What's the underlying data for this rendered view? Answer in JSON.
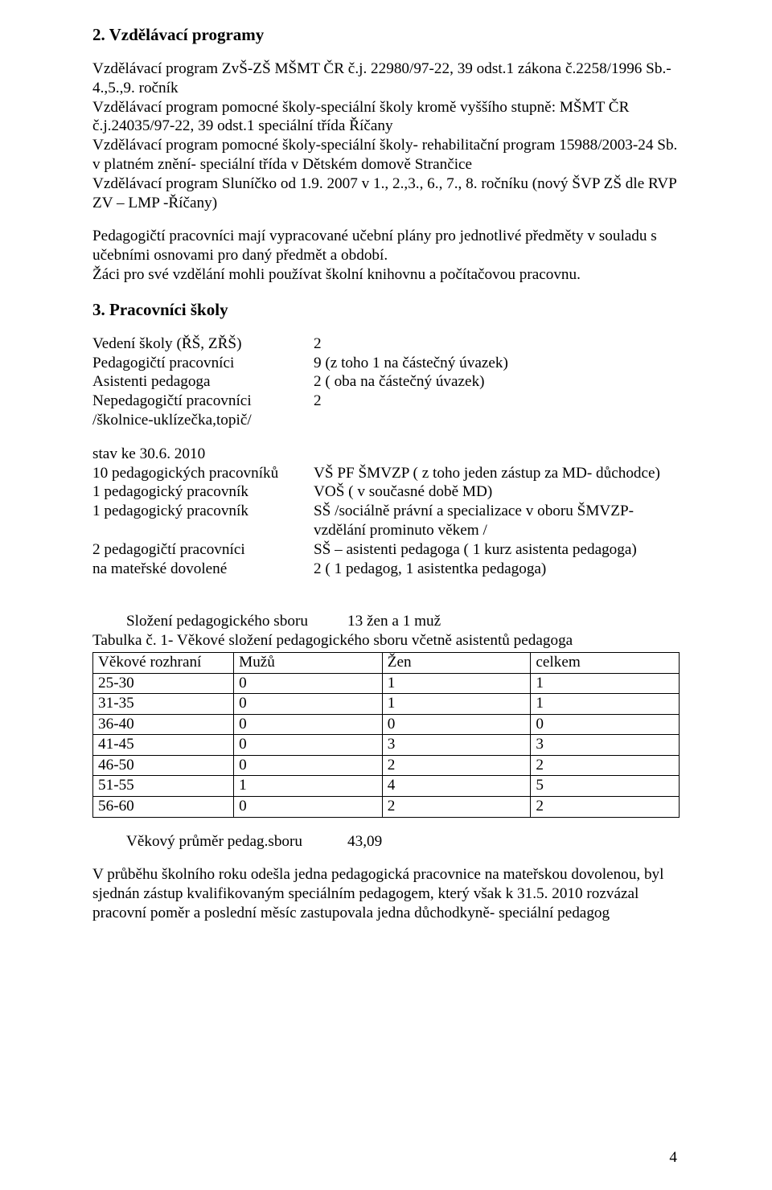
{
  "sections": {
    "vzdelavaci": {
      "heading": "2. Vzdělávací programy",
      "text": "Vzdělávací program ZvŠ-ZŠ MŠMT ČR č.j. 22980/97-22, 39 odst.1 zákona č.2258/1996 Sb.- 4.,5.,9. ročník\nVzdělávací program pomocné školy-speciální školy kromě vyššího stupně: MŠMT ČR č.j.24035/97-22, 39 odst.1 speciální třída Říčany\nVzdělávací program pomocné školy-speciální školy- rehabilitační program 15988/2003-24 Sb. v platném znění- speciální třída v Dětském domově Strančice\nVzdělávací program Sluníčko od 1.9. 2007 v 1., 2.,3., 6., 7., 8. ročníku (nový ŠVP ZŠ  dle RVP ZV – LMP -Říčany)",
      "text2": "Pedagogičtí pracovníci mají vypracované učební plány pro jednotlivé předměty v souladu s učebními osnovami pro daný předmět a období.\nŽáci pro své vzdělání mohli používat školní knihovnu a počítačovou pracovnu."
    },
    "pracovnici": {
      "heading": "3. Pracovníci školy",
      "rows1": [
        {
          "l": "Vedení školy (ŘŠ, ZŘŠ)",
          "r": "2"
        },
        {
          "l": "Pedagogičtí pracovníci",
          "r": "9 (z toho 1 na částečný úvazek)"
        },
        {
          "l": "Asistenti pedagoga",
          "r": "2 ( oba na částečný úvazek)"
        },
        {
          "l": "Nepedagogičtí pracovníci",
          "r": "2"
        },
        {
          "l": "/školnice-uklízečka,topič/",
          "r": ""
        }
      ],
      "stav_heading": "stav ke 30.6. 2010",
      "rows2": [
        {
          "l": "10 pedagogických pracovníků",
          "r": "VŠ PF ŠMVZP ( z toho jeden zástup za MD- důchodce)"
        },
        {
          "l": "1 pedagogický pracovník",
          "r": "VOŠ ( v současné době MD)"
        },
        {
          "l": "1 pedagogický pracovník",
          "r": "SŠ /sociálně právní a specializace v oboru ŠMVZP-"
        },
        {
          "l": "",
          "r": "vzdělání prominuto věkem /"
        },
        {
          "l": "2 pedagogičtí pracovníci",
          "r": "SŠ – asistenti pedagoga ( 1 kurz asistenta pedagoga)"
        },
        {
          "l": "na mateřské dovolené",
          "r": "2 ( 1 pedagog, 1 asistentka pedagoga)"
        }
      ],
      "slozeni_line": {
        "l": "Složení pedagogického sboru",
        "r": "13 žen a 1 muž"
      }
    },
    "table": {
      "caption": "Tabulka č. 1- Věkové složení pedagogického sboru včetně asistentů pedagoga",
      "columns": [
        "Věkové rozhraní",
        "Mužů",
        "Žen",
        "celkem"
      ],
      "rows": [
        [
          "25-30",
          "0",
          "1",
          "1"
        ],
        [
          "31-35",
          "0",
          "1",
          "1"
        ],
        [
          "36-40",
          "0",
          "0",
          "0"
        ],
        [
          "41-45",
          "0",
          "3",
          "3"
        ],
        [
          "46-50",
          "0",
          "2",
          "2"
        ],
        [
          "51-55",
          "1",
          "4",
          "5"
        ],
        [
          "56-60",
          "0",
          "2",
          "2"
        ]
      ]
    },
    "avg": {
      "l": "Věkový průměr pedag.sboru",
      "r": "43,09"
    },
    "footer_para": "V průběhu školního roku odešla jedna pedagogická pracovnice na mateřskou dovolenou, byl sjednán zástup kvalifikovaným speciálním pedagogem, který však k 31.5. 2010 rozvázal pracovní poměr a poslední měsíc zastupovala jedna důchodkyně- speciální pedagog"
  },
  "page_number": "4"
}
